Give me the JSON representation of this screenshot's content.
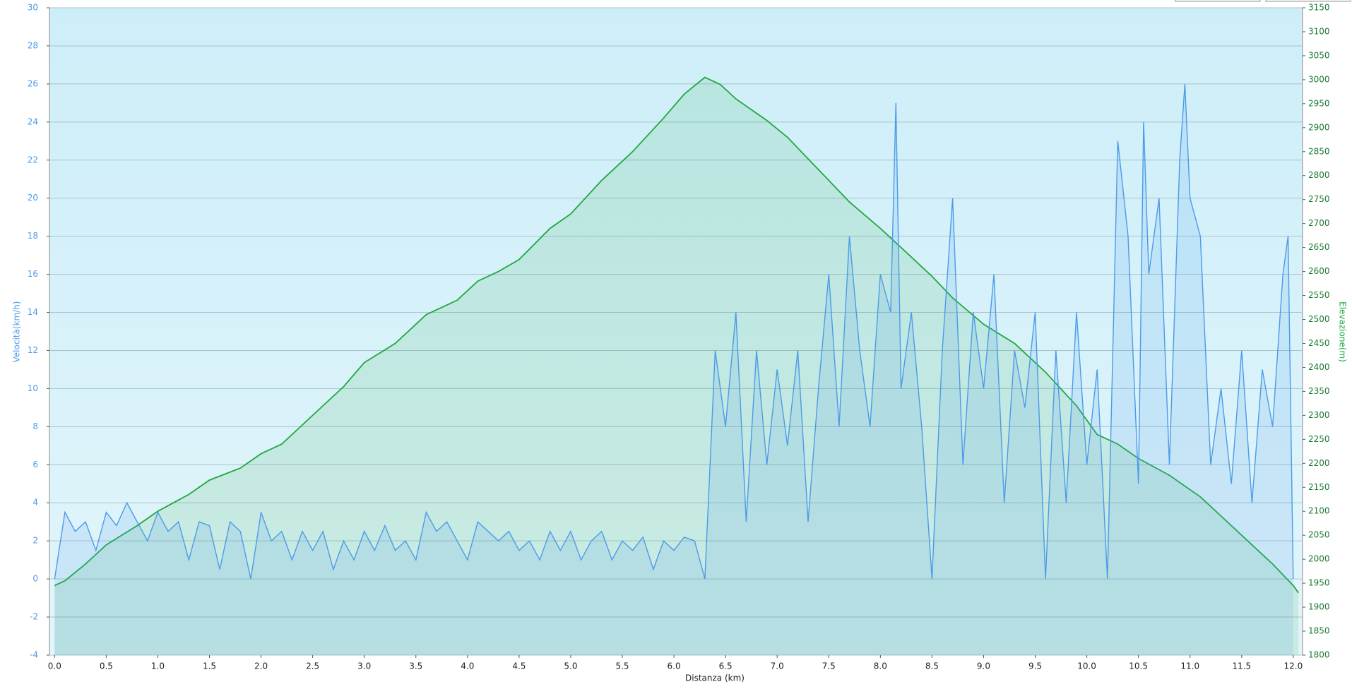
{
  "chart_data": {
    "type": "line",
    "x_label": "Distanza  (km)",
    "y_label": "Velocità(km/h)",
    "y2_label": "Elevazione(m)",
    "xlim": [
      -0.05,
      12.09
    ],
    "ylim": [
      -4,
      30
    ],
    "y2lim": [
      1800,
      3150
    ],
    "xticks": [
      {
        "value": 0,
        "label": "0.0"
      },
      0.5,
      {
        "value": 1,
        "label": "1.0"
      },
      1.5,
      {
        "value": 2,
        "label": "2.0"
      },
      2.5,
      {
        "value": 3,
        "label": "3.0"
      },
      3.5,
      {
        "value": 4,
        "label": "4.0"
      },
      4.5,
      {
        "value": 5,
        "label": "5.0"
      },
      5.5,
      {
        "value": 6,
        "label": "6.0"
      },
      6.5,
      {
        "value": 7,
        "label": "7.0"
      },
      7.5,
      {
        "value": 8,
        "label": "8.0"
      },
      8.5,
      {
        "value": 9,
        "label": "9.0"
      },
      9.5,
      {
        "value": 10,
        "label": "10.0"
      },
      10.5,
      {
        "value": 11,
        "label": "11.0"
      },
      11.5,
      {
        "value": 12,
        "label": "12.0"
      }
    ],
    "yticks": [
      -4,
      -2,
      0,
      2,
      4,
      6,
      8,
      10,
      12,
      14,
      16,
      18,
      20,
      22,
      24,
      26,
      28,
      30
    ],
    "y2ticks": [
      1800,
      1850,
      1900,
      1950,
      2000,
      2050,
      2100,
      2150,
      2200,
      2250,
      2300,
      2350,
      2400,
      2450,
      2500,
      2550,
      2600,
      2650,
      2700,
      2750,
      2800,
      2850,
      2900,
      2950,
      3000,
      3050,
      3100,
      3150
    ],
    "grid": true,
    "series": [
      {
        "name": "Velocità",
        "color": "#4c9be8",
        "axis": "y",
        "x": [
          0.0,
          0.1,
          0.2,
          0.3,
          0.4,
          0.5,
          0.6,
          0.7,
          0.8,
          0.9,
          1.0,
          1.1,
          1.2,
          1.3,
          1.4,
          1.5,
          1.6,
          1.7,
          1.8,
          1.9,
          2.0,
          2.1,
          2.2,
          2.3,
          2.4,
          2.5,
          2.6,
          2.7,
          2.8,
          2.9,
          3.0,
          3.1,
          3.2,
          3.3,
          3.4,
          3.5,
          3.6,
          3.7,
          3.8,
          3.9,
          4.0,
          4.1,
          4.2,
          4.3,
          4.4,
          4.5,
          4.6,
          4.7,
          4.8,
          4.9,
          5.0,
          5.1,
          5.2,
          5.3,
          5.4,
          5.5,
          5.6,
          5.7,
          5.8,
          5.9,
          6.0,
          6.1,
          6.2,
          6.3,
          6.4,
          6.5,
          6.6,
          6.7,
          6.8,
          6.9,
          7.0,
          7.1,
          7.2,
          7.3,
          7.4,
          7.5,
          7.6,
          7.7,
          7.8,
          7.9,
          8.0,
          8.1,
          8.15,
          8.2,
          8.3,
          8.4,
          8.5,
          8.6,
          8.7,
          8.8,
          8.9,
          9.0,
          9.1,
          9.2,
          9.3,
          9.4,
          9.5,
          9.6,
          9.7,
          9.8,
          9.9,
          10.0,
          10.1,
          10.2,
          10.3,
          10.4,
          10.5,
          10.55,
          10.6,
          10.7,
          10.8,
          10.9,
          10.95,
          11.0,
          11.1,
          11.2,
          11.3,
          11.4,
          11.5,
          11.6,
          11.7,
          11.8,
          11.9,
          11.95,
          12.0
        ],
        "values": [
          0,
          3.5,
          2.5,
          3,
          1.5,
          3.5,
          2.8,
          4,
          3,
          2,
          3.5,
          2.5,
          3,
          1,
          3,
          2.8,
          0.5,
          3,
          2.5,
          0,
          3.5,
          2,
          2.5,
          1,
          2.5,
          1.5,
          2.5,
          0.5,
          2,
          1,
          2.5,
          1.5,
          2.8,
          1.5,
          2,
          1,
          3.5,
          2.5,
          3,
          2,
          1,
          3,
          2.5,
          2,
          2.5,
          1.5,
          2,
          1,
          2.5,
          1.5,
          2.5,
          1,
          2,
          2.5,
          1,
          2,
          1.5,
          2.2,
          0.5,
          2,
          1.5,
          2.2,
          2,
          0,
          12,
          8,
          14,
          3,
          12,
          6,
          11,
          7,
          12,
          3,
          10,
          16,
          8,
          18,
          12,
          8,
          16,
          14,
          25,
          10,
          14,
          8,
          0,
          12,
          20,
          6,
          14,
          10,
          16,
          4,
          12,
          9,
          14,
          0,
          12,
          4,
          14,
          6,
          11,
          0,
          23,
          18,
          5,
          24,
          16,
          20,
          6,
          22,
          26,
          20,
          18,
          6,
          10,
          5,
          12,
          4,
          11,
          8,
          16,
          18,
          0
        ]
      },
      {
        "name": "Elevazione",
        "color": "#1fa83c",
        "axis": "y2",
        "x": [
          0,
          0.1,
          0.3,
          0.5,
          0.8,
          1.0,
          1.3,
          1.5,
          1.8,
          2.0,
          2.2,
          2.5,
          2.8,
          3.0,
          3.3,
          3.6,
          3.9,
          4.1,
          4.3,
          4.5,
          4.8,
          5.0,
          5.3,
          5.6,
          5.9,
          6.1,
          6.3,
          6.45,
          6.6,
          6.9,
          7.1,
          7.3,
          7.5,
          7.7,
          8.0,
          8.2,
          8.5,
          8.7,
          9.0,
          9.3,
          9.6,
          9.9,
          10.1,
          10.3,
          10.5,
          10.8,
          11.1,
          11.3,
          11.6,
          11.8,
          12.0,
          12.05
        ],
        "values": [
          1945,
          1955,
          1990,
          2030,
          2070,
          2100,
          2135,
          2165,
          2190,
          2220,
          2240,
          2300,
          2360,
          2410,
          2450,
          2510,
          2540,
          2580,
          2600,
          2625,
          2690,
          2720,
          2790,
          2850,
          2920,
          2970,
          3005,
          2990,
          2960,
          2915,
          2880,
          2835,
          2790,
          2745,
          2690,
          2650,
          2590,
          2545,
          2490,
          2450,
          2390,
          2320,
          2260,
          2240,
          2210,
          2175,
          2130,
          2090,
          2030,
          1990,
          1945,
          1930
        ]
      }
    ]
  }
}
